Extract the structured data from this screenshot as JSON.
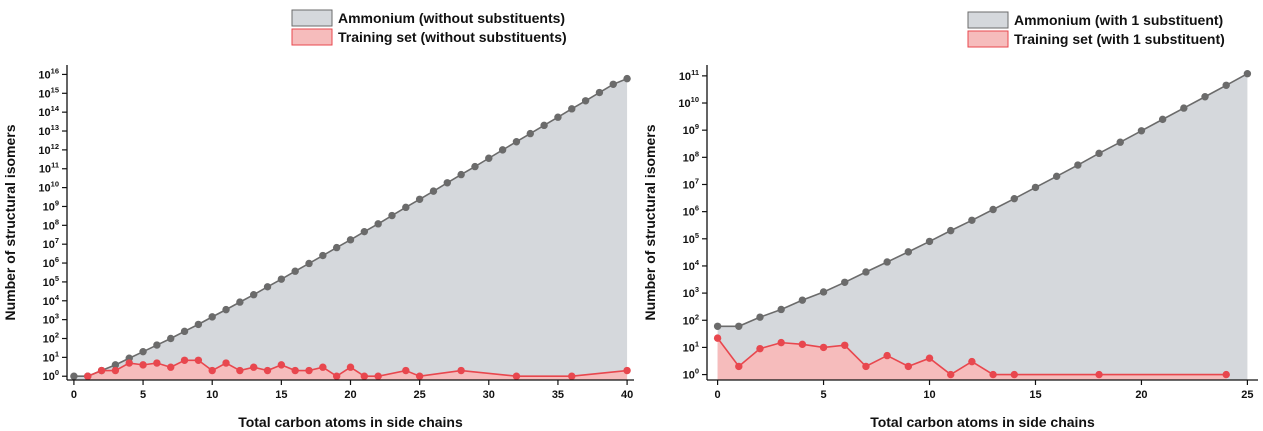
{
  "chart_data": [
    {
      "type": "area",
      "title": "",
      "xlabel": "Total carbon atoms in side chains",
      "ylabel": "Number of structural isomers",
      "yscale": "log",
      "xlim": [
        -0.5,
        40.5
      ],
      "xticks": [
        0,
        5,
        10,
        15,
        20,
        25,
        30,
        35,
        40
      ],
      "ylim_exponent": [
        -0.2,
        16.5
      ],
      "yticks_exponent": [
        0,
        1,
        2,
        3,
        4,
        5,
        6,
        7,
        8,
        9,
        10,
        11,
        12,
        13,
        14,
        15,
        16
      ],
      "legend_position": "top-center",
      "series": [
        {
          "name": "Ammonium (without substituents)",
          "color": "#6b6b6b",
          "fill": "#d5d8dc",
          "x": [
            0,
            1,
            2,
            3,
            4,
            5,
            6,
            7,
            8,
            9,
            10,
            11,
            12,
            13,
            14,
            15,
            16,
            17,
            18,
            19,
            20,
            21,
            22,
            23,
            24,
            25,
            26,
            27,
            28,
            29,
            30,
            31,
            32,
            33,
            34,
            35,
            36,
            37,
            38,
            39,
            40
          ],
          "y": [
            1,
            1,
            2,
            4,
            9,
            20,
            45,
            100,
            240,
            560,
            1400,
            3400,
            8500,
            21000,
            55000,
            140000,
            370000,
            950000,
            2500000,
            6600000,
            17000000,
            46000000,
            120000000,
            330000000,
            900000000,
            2400000000,
            6500000000,
            18000000000,
            49000000000,
            130000000000,
            360000000000,
            1000000000000,
            2700000000000,
            7300000000000,
            20000000000000,
            54000000000000,
            150000000000000,
            400000000000000,
            1100000000000000,
            3000000000000000,
            6000000000000000
          ]
        },
        {
          "name": "Training set (without substituents)",
          "color": "#e8474e",
          "fill": "#f6bcbc",
          "x": [
            1,
            2,
            3,
            4,
            5,
            6,
            7,
            8,
            9,
            10,
            11,
            12,
            13,
            14,
            15,
            16,
            17,
            18,
            19,
            20,
            21,
            22,
            24,
            25,
            28,
            32,
            36,
            40
          ],
          "y": [
            1,
            2,
            2,
            5,
            4,
            5,
            3,
            7,
            7,
            2,
            5,
            2,
            3,
            2,
            4,
            2,
            2,
            3,
            1,
            3,
            1,
            1,
            2,
            1,
            2,
            1,
            1,
            2
          ]
        }
      ]
    },
    {
      "type": "area",
      "title": "",
      "xlabel": "Total carbon atoms in side chains",
      "ylabel": "Number of structural isomers",
      "yscale": "log",
      "xlim": [
        -0.5,
        25.5
      ],
      "xticks": [
        0,
        5,
        10,
        15,
        20,
        25
      ],
      "ylim_exponent": [
        -0.2,
        11.4
      ],
      "yticks_exponent": [
        0,
        1,
        2,
        3,
        4,
        5,
        6,
        7,
        8,
        9,
        10,
        11
      ],
      "legend_position": "top-right",
      "series": [
        {
          "name": "Ammonium (with 1 substituent)",
          "color": "#6b6b6b",
          "fill": "#d5d8dc",
          "x": [
            0,
            1,
            2,
            3,
            4,
            5,
            6,
            7,
            8,
            9,
            10,
            11,
            12,
            13,
            14,
            15,
            16,
            17,
            18,
            19,
            20,
            21,
            22,
            23,
            24,
            25
          ],
          "y": [
            60,
            60,
            130,
            250,
            550,
            1100,
            2500,
            6000,
            14000,
            33000,
            80000,
            200000,
            480000,
            1200000,
            3000000,
            7800000,
            20000000,
            52000000,
            140000000,
            360000000,
            950000000,
            2500000000,
            6500000000,
            17000000000,
            45000000000,
            120000000000
          ]
        },
        {
          "name": "Training set (with 1 substituent)",
          "color": "#e8474e",
          "fill": "#f6bcbc",
          "x": [
            0,
            1,
            2,
            3,
            4,
            5,
            6,
            7,
            8,
            9,
            10,
            11,
            12,
            13,
            14,
            18,
            24
          ],
          "y": [
            22,
            2,
            9,
            15,
            13,
            10,
            12,
            2,
            5,
            2,
            4,
            1,
            3,
            1,
            1,
            1,
            1
          ]
        }
      ]
    }
  ]
}
